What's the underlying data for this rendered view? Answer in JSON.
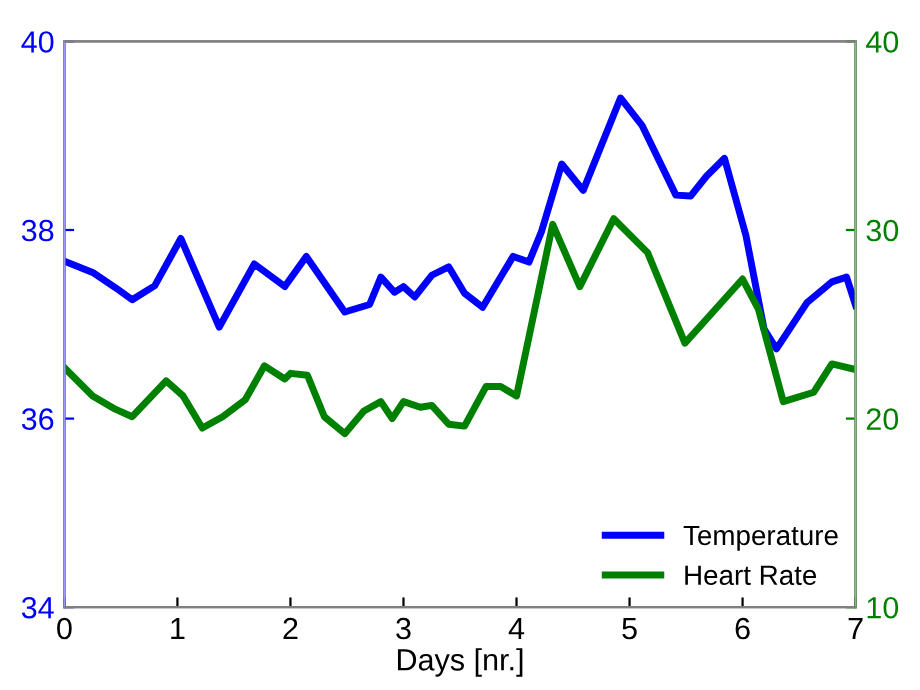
{
  "chart_data": {
    "type": "line",
    "xlabel": "Days [nr.]",
    "xlim": [
      0,
      7
    ],
    "xticks": [
      0,
      1,
      2,
      3,
      4,
      5,
      6,
      7
    ],
    "ylim": [
      34,
      40
    ],
    "yticks": [
      34,
      36,
      38,
      40
    ],
    "y2lim": [
      10,
      40
    ],
    "y2ticks": [
      10,
      20,
      30,
      40
    ],
    "legend": "bottom right",
    "grid": false,
    "series": [
      {
        "name": "Temperature",
        "color": "#0000ff",
        "x": [
          0,
          0.25,
          0.45,
          0.6,
          0.8,
          1.03,
          1.37,
          1.68,
          1.95,
          2.14,
          2.48,
          2.7,
          2.8,
          2.92,
          3.0,
          3.1,
          3.25,
          3.4,
          3.54,
          3.7,
          3.97,
          4.11,
          4.22,
          4.4,
          4.59,
          4.92,
          5.11,
          5.41,
          5.54,
          5.68,
          5.84,
          6.03,
          6.19,
          6.3,
          6.57,
          6.79,
          6.92,
          7.0
        ],
        "values": [
          37.67,
          37.55,
          37.39,
          37.26,
          37.41,
          37.91,
          36.97,
          37.64,
          37.4,
          37.72,
          37.13,
          37.21,
          37.5,
          37.34,
          37.4,
          37.29,
          37.52,
          37.61,
          37.33,
          37.18,
          37.72,
          37.66,
          37.98,
          38.7,
          38.42,
          39.4,
          39.11,
          38.37,
          38.36,
          38.57,
          38.76,
          37.94,
          36.95,
          36.74,
          37.23,
          37.45,
          37.5,
          37.2
        ]
      },
      {
        "name": "Heart Rate",
        "color": "#008000",
        "axis": "y2",
        "x": [
          0,
          0.25,
          0.45,
          0.6,
          0.9,
          1.05,
          1.22,
          1.4,
          1.6,
          1.77,
          1.95,
          2.0,
          2.15,
          2.3,
          2.48,
          2.65,
          2.8,
          2.9,
          3.0,
          3.15,
          3.25,
          3.4,
          3.54,
          3.73,
          3.86,
          4.0,
          4.32,
          4.56,
          4.86,
          5.16,
          5.49,
          5.7,
          6.0,
          6.14,
          6.36,
          6.63,
          6.79,
          7.0
        ],
        "values": [
          22.7,
          21.2,
          20.5,
          20.1,
          22.0,
          21.2,
          19.5,
          20.1,
          21.0,
          22.8,
          22.1,
          22.4,
          22.3,
          20.1,
          19.2,
          20.4,
          20.9,
          20.0,
          20.9,
          20.6,
          20.7,
          19.7,
          19.6,
          21.7,
          21.7,
          21.2,
          30.3,
          27.0,
          30.6,
          28.8,
          24.0,
          25.4,
          27.4,
          25.8,
          20.9,
          21.4,
          22.9,
          22.6
        ]
      }
    ]
  }
}
